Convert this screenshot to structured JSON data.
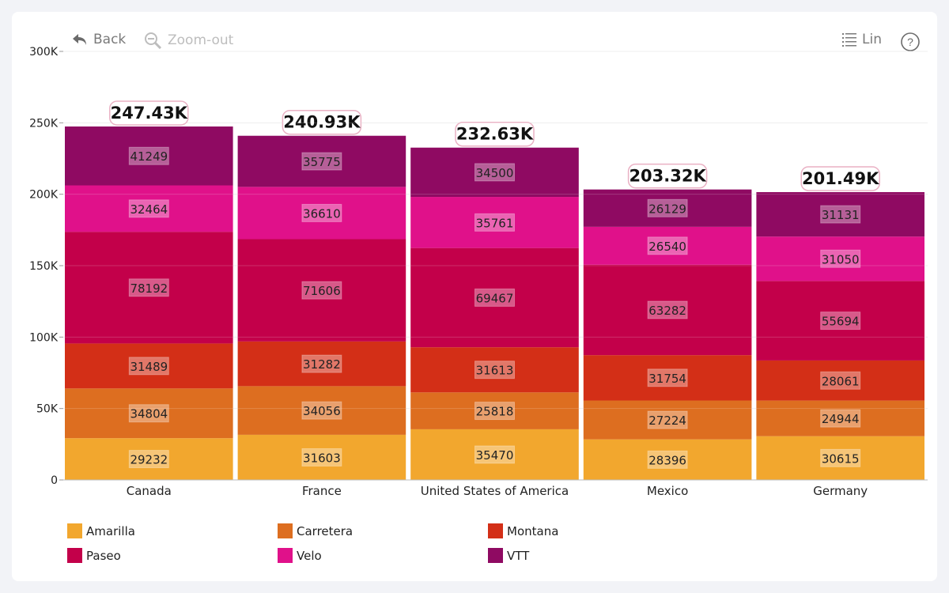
{
  "toolbar": {
    "back_label": "Back",
    "back_icon": "undo-arrow-icon",
    "zoom_out_label": "Zoom-out",
    "zoom_out_icon": "zoom-out-icon",
    "scale_label": "Lin",
    "scale_icon": "list-icon",
    "help_icon": "help-icon",
    "help_glyph": "?"
  },
  "chart_data": {
    "type": "bar",
    "stacked": true,
    "title": "",
    "xlabel": "",
    "ylabel": "",
    "ylim": [
      0,
      300000
    ],
    "yticks": [
      0,
      50000,
      100000,
      150000,
      200000,
      250000,
      300000
    ],
    "ytick_labels": [
      "0",
      "50K",
      "100K",
      "150K",
      "200K",
      "250K",
      "300K"
    ],
    "grid": true,
    "legend_position": "bottom",
    "categories": [
      "Canada",
      "France",
      "United States of America",
      "Mexico",
      "Germany"
    ],
    "totals_labels": [
      "247.43K",
      "240.93K",
      "232.63K",
      "203.32K",
      "201.49K"
    ],
    "series": [
      {
        "name": "Amarilla",
        "color": "#f2a72e",
        "values": [
          29232,
          31603,
          35470,
          28396,
          30615
        ]
      },
      {
        "name": "Carretera",
        "color": "#dd6e20",
        "values": [
          34804,
          34056,
          25818,
          27224,
          24944
        ]
      },
      {
        "name": "Montana",
        "color": "#d32f17",
        "values": [
          31489,
          31282,
          31613,
          31754,
          28061
        ]
      },
      {
        "name": "Paseo",
        "color": "#c3004a",
        "values": [
          78192,
          71606,
          69467,
          63282,
          55694
        ]
      },
      {
        "name": "Velo",
        "color": "#e0118a",
        "values": [
          32464,
          36610,
          35761,
          26540,
          31050
        ]
      },
      {
        "name": "VTT",
        "color": "#8f0a62",
        "values": [
          41249,
          35775,
          34500,
          26129,
          31131
        ]
      }
    ]
  }
}
